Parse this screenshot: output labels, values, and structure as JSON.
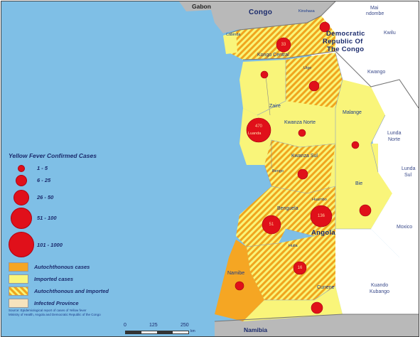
{
  "legend": {
    "title": "Yellow Fever Confirmed Cases",
    "ranges": [
      "1 - 5",
      "6 - 25",
      "26 - 50",
      "51 - 100",
      "101 - 1000"
    ],
    "categories": [
      {
        "label": "Autochthonous cases",
        "color": "#f5a623"
      },
      {
        "label": "Imported cases",
        "color": "#f9f57a"
      },
      {
        "label": "Autochthonous and Imported",
        "color": "hatched"
      },
      {
        "label": "Infected Province",
        "color": "#f6e3bd"
      }
    ]
  },
  "countries": {
    "gabon": "Gabon",
    "congo": "Congo",
    "drc_line1": "Democratic",
    "drc_line2": "Republic Of",
    "drc_line3": "The Congo",
    "angola": "Angola",
    "namibia": "Namibia"
  },
  "provinces": {
    "kinshasa": "Kinshasa",
    "mai_ndombe_1": "Mai",
    "mai_ndombe_2": "ndombe",
    "kwilu": "Kwilu",
    "kwango": "Kwango",
    "kongo_central": "Kongo Central",
    "cabinda": "Cabinda",
    "uige": "Uige",
    "zaire": "Zaire",
    "malange": "Malange",
    "kwanza_norte": "Kwanza Norte",
    "luanda": "Luanda",
    "lunda_norte_1": "Lunda",
    "lunda_norte_2": "Norte",
    "kwanza_sul": "Kwanza Sul",
    "lunda_sul_1": "Lunda",
    "lunda_sul_2": "Sul",
    "bengo": "Bengo",
    "bie": "Bie",
    "huambo": "Huambo",
    "benguela": "Benguela",
    "moxico": "Moxico",
    "huila": "Huila",
    "namibe": "Namibe",
    "cunene": "Cunene",
    "kuando_1": "Kuando",
    "kuando_2": "Kubango"
  },
  "map_values": {
    "kongo_central": "33",
    "luanda": "470",
    "huambo": "136",
    "benguela": "51",
    "huila": "16"
  },
  "source": {
    "line1": "Source: Epidemiological report of cases of Yellow fever",
    "line2": "Ministry of Health, Angola and Democratic Republic of the Congo"
  },
  "scale": {
    "values": [
      "0",
      "125",
      "250"
    ],
    "unit": "km"
  }
}
